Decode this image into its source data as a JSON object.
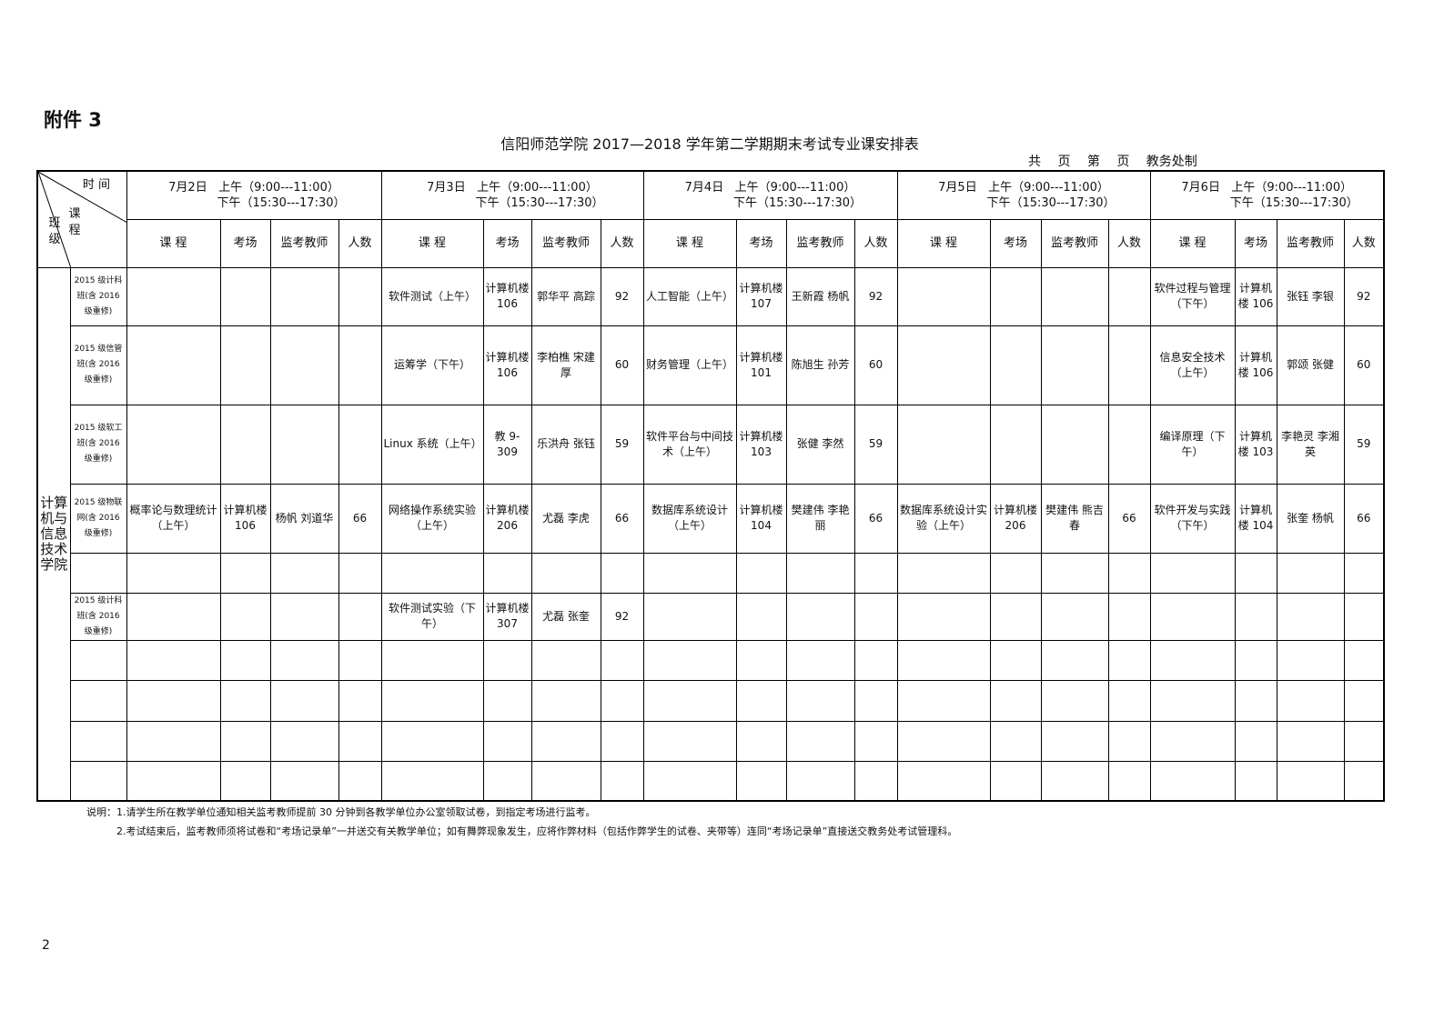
{
  "attachment": "附件 3",
  "title": "信阳师范学院 2017—2018 学年第二学期期末考试专业课安排表",
  "subtitle": "共 页 第 页 教务处制",
  "corner": {
    "time": "时 间",
    "course": "课 程",
    "class": "班 级"
  },
  "days": [
    {
      "date": "7月2日",
      "am": "上午（9:00---11:00）",
      "pm": "下午（15:30---17:30）"
    },
    {
      "date": "7月3日",
      "am": "上午（9:00---11:00）",
      "pm": "下午（15:30---17:30）"
    },
    {
      "date": "7月4日",
      "am": "上午（9:00---11:00）",
      "pm": "下午（15:30---17:30）"
    },
    {
      "date": "7月5日",
      "am": "上午（9:00---11:00）",
      "pm": "下午（15:30---17:30）"
    },
    {
      "date": "7月6日",
      "am": "上午（9:00---11:00）",
      "pm": "下午（15:30---17:30）"
    }
  ],
  "columns": [
    "课 程",
    "考场",
    "监考教师",
    "人数"
  ],
  "department": "计算机与信息技术学院",
  "rows": [
    {
      "class": "2015 级计科班(含 2016 级重修)",
      "cells": [
        [
          "",
          "",
          "",
          ""
        ],
        [
          "软件测试（上午）",
          "计算机楼 106",
          "郭华平 高踪",
          "92"
        ],
        [
          "人工智能（上午）",
          "计算机楼 107",
          "王新霞 杨帆",
          "92"
        ],
        [
          "",
          "",
          "",
          ""
        ],
        [
          "软件过程与管理（下午）",
          "计算机楼 106",
          "张钰 李银",
          "92"
        ]
      ]
    },
    {
      "class": "2015 级信管班(含 2016 级重修)",
      "cells": [
        [
          "",
          "",
          "",
          ""
        ],
        [
          "运筹学（下午）",
          "计算机楼 106",
          "李柏樵 宋建厚",
          "60"
        ],
        [
          "财务管理（上午）",
          "计算机楼 101",
          "陈旭生 孙芳",
          "60"
        ],
        [
          "",
          "",
          "",
          ""
        ],
        [
          "信息安全技术（上午）",
          "计算机楼 106",
          "郭颂 张健",
          "60"
        ]
      ]
    },
    {
      "class": "2015 级软工班(含 2016 级重修)",
      "cells": [
        [
          "",
          "",
          "",
          ""
        ],
        [
          "Linux 系统（上午）",
          "教 9-309",
          "乐洪舟 张钰",
          "59"
        ],
        [
          "软件平台与中间技术（上午）",
          "计算机楼 103",
          "张健 李然",
          "59"
        ],
        [
          "",
          "",
          "",
          ""
        ],
        [
          "编译原理（下午）",
          "计算机楼 103",
          "李艳灵 李湘英",
          "59"
        ]
      ]
    },
    {
      "class": "2015 级物联网(含 2016 级重修)",
      "cells": [
        [
          "概率论与数理统计（上午）",
          "计算机楼 106",
          "杨帆 刘道华",
          "66"
        ],
        [
          "网络操作系统实验（上午）",
          "计算机楼 206",
          "尤磊 李虎",
          "66"
        ],
        [
          "数据库系统设计（上午）",
          "计算机楼 104",
          "樊建伟 李艳丽",
          "66"
        ],
        [
          "数据库系统设计实验（上午）",
          "计算机楼 206",
          "樊建伟 熊吉春",
          "66"
        ],
        [
          "软件开发与实践（下午）",
          "计算机楼 104",
          "张奎 杨帆",
          "66"
        ]
      ]
    },
    {
      "class": "",
      "cells": [
        [
          "",
          "",
          "",
          ""
        ],
        [
          "",
          "",
          "",
          ""
        ],
        [
          "",
          "",
          "",
          ""
        ],
        [
          "",
          "",
          "",
          ""
        ],
        [
          "",
          "",
          "",
          ""
        ]
      ]
    },
    {
      "class": "2015 级计科班(含 2016 级重修)",
      "cells": [
        [
          "",
          "",
          "",
          ""
        ],
        [
          "软件测试实验（下午）",
          "计算机楼 307",
          "尤磊 张奎",
          "92"
        ],
        [
          "",
          "",
          "",
          ""
        ],
        [
          "",
          "",
          "",
          ""
        ],
        [
          "",
          "",
          "",
          ""
        ]
      ]
    },
    {
      "class": "",
      "cells": [
        [
          "",
          "",
          "",
          ""
        ],
        [
          "",
          "",
          "",
          ""
        ],
        [
          "",
          "",
          "",
          ""
        ],
        [
          "",
          "",
          "",
          ""
        ],
        [
          "",
          "",
          "",
          ""
        ]
      ]
    },
    {
      "class": "",
      "cells": [
        [
          "",
          "",
          "",
          ""
        ],
        [
          "",
          "",
          "",
          ""
        ],
        [
          "",
          "",
          "",
          ""
        ],
        [
          "",
          "",
          "",
          ""
        ],
        [
          "",
          "",
          "",
          ""
        ]
      ]
    },
    {
      "class": "",
      "cells": [
        [
          "",
          "",
          "",
          ""
        ],
        [
          "",
          "",
          "",
          ""
        ],
        [
          "",
          "",
          "",
          ""
        ],
        [
          "",
          "",
          "",
          ""
        ],
        [
          "",
          "",
          "",
          ""
        ]
      ]
    },
    {
      "class": "",
      "cells": [
        [
          "",
          "",
          "",
          ""
        ],
        [
          "",
          "",
          "",
          ""
        ],
        [
          "",
          "",
          "",
          ""
        ],
        [
          "",
          "",
          "",
          ""
        ],
        [
          "",
          "",
          "",
          ""
        ]
      ]
    }
  ],
  "notes": [
    "说明：1.请学生所在教学单位通知相关监考教师提前 30 分钟到各教学单位办公室领取试卷，到指定考场进行监考。",
    "2.考试结束后，监考教师须将试卷和“考场记录单”一并送交有关教学单位；如有舞弊现象发生，应将作弊材料（包括作弊学生的试卷、夹带等）连同“考场记录单”直接送交教务处考试管理科。"
  ],
  "page_number": "2"
}
